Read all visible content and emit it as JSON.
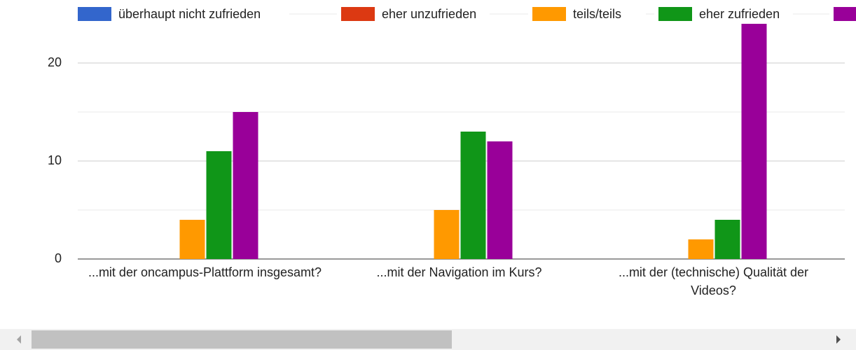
{
  "chart_data": {
    "type": "bar",
    "categories": [
      "...mit der oncampus-Plattform insgesamt?",
      "...mit der Navigation im Kurs?",
      "...mit der (technische) Qualität der Videos?"
    ],
    "series": [
      {
        "name": "überhaupt nicht zufrieden",
        "color": "#3366cc",
        "values": [
          0,
          0,
          0
        ]
      },
      {
        "name": "eher unzufrieden",
        "color": "#dc3912",
        "values": [
          0,
          0,
          0
        ]
      },
      {
        "name": "teils/teils",
        "color": "#ff9900",
        "values": [
          4,
          5,
          2
        ]
      },
      {
        "name": "eher zufrieden",
        "color": "#109618",
        "values": [
          11,
          13,
          4
        ]
      },
      {
        "color": "#990099",
        "values": [
          15,
          12,
          24
        ]
      }
    ],
    "ylim": [
      0,
      25
    ],
    "yticks": [
      0,
      10,
      20
    ],
    "minor_yticks": [
      5,
      15,
      25
    ],
    "grid": true,
    "legend": "top"
  }
}
